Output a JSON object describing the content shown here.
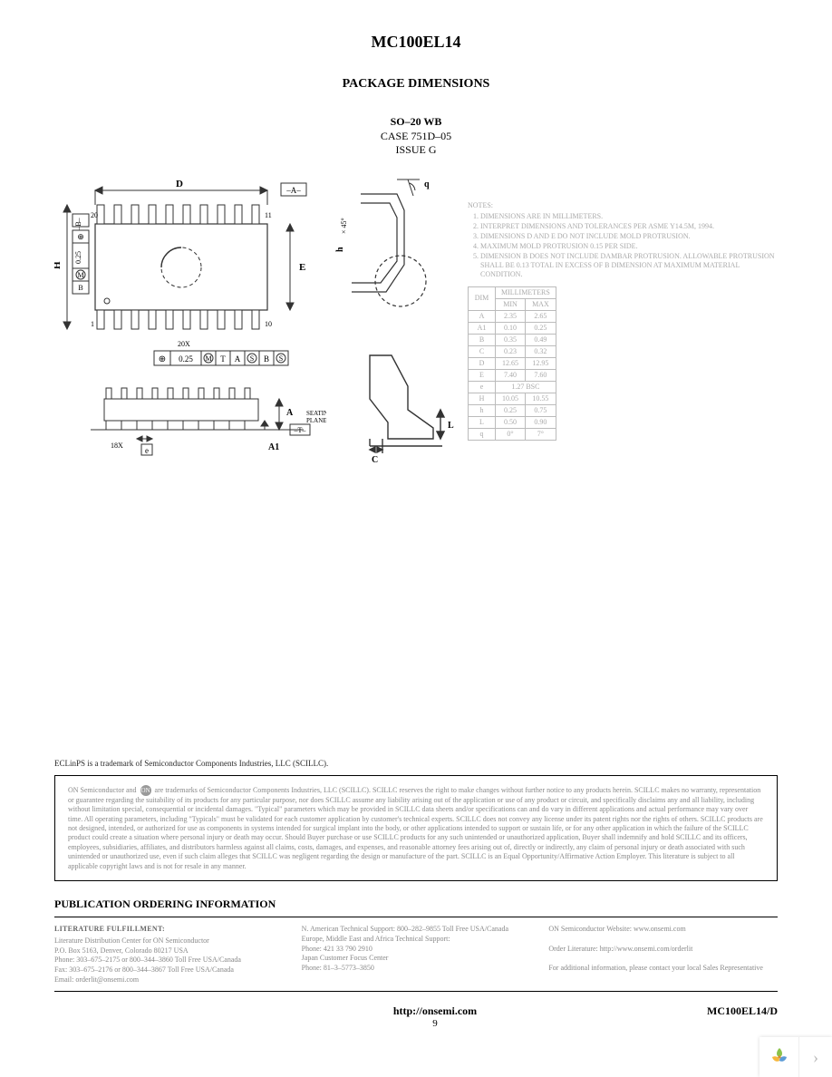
{
  "header": {
    "part_number": "MC100EL14",
    "section_title": "PACKAGE DIMENSIONS",
    "package_name": "SO–20 WB",
    "case_line": "CASE 751D–05",
    "issue_line": "ISSUE G"
  },
  "diagram_labels": {
    "top": {
      "D": "D",
      "A_datum": "–A–"
    },
    "pins": {
      "p20": "20",
      "p11": "11",
      "p1": "1",
      "p10": "10"
    },
    "left": {
      "H": "H",
      "B_datum": "–B–",
      "gdt_0_25": "0.25",
      "gdt_M": "M",
      "gdt_B": "B"
    },
    "right": {
      "E": "E"
    },
    "bot_gdt": {
      "oplus": "⊕",
      "val": "0.25",
      "M": "M",
      "T": "T",
      "A": "A",
      "B": "B"
    },
    "side": {
      "A": "A",
      "A1": "A1",
      "T_datum": "–T–",
      "seating": "SEATING",
      "plane": "PLANE",
      "x18": "18X",
      "e": "e"
    },
    "detail": {
      "q": "q",
      "h": "h",
      "x45": "× 45°",
      "C": "C",
      "L": "L"
    },
    "x20": "20X"
  },
  "notes": {
    "heading": "NOTES:",
    "items": [
      "DIMENSIONS ARE IN MILLIMETERS.",
      "INTERPRET DIMENSIONS AND TOLERANCES PER ASME Y14.5M, 1994.",
      "DIMENSIONS D AND E DO NOT INCLUDE MOLD PROTRUSION.",
      "MAXIMUM MOLD PROTRUSION 0.15 PER SIDE.",
      "DIMENSION B DOES NOT INCLUDE DAMBAR PROTRUSION. ALLOWABLE PROTRUSION SHALL BE 0.13 TOTAL IN EXCESS OF B DIMENSION AT MAXIMUM MATERIAL CONDITION."
    ]
  },
  "dim_table": {
    "unit_header": "MILLIMETERS",
    "col_dim": "DIM",
    "col_min": "MIN",
    "col_max": "MAX",
    "rows": [
      {
        "dim": "A",
        "min": "2.35",
        "max": "2.65"
      },
      {
        "dim": "A1",
        "min": "0.10",
        "max": "0.25"
      },
      {
        "dim": "B",
        "min": "0.35",
        "max": "0.49"
      },
      {
        "dim": "C",
        "min": "0.23",
        "max": "0.32"
      },
      {
        "dim": "D",
        "min": "12.65",
        "max": "12.95"
      },
      {
        "dim": "E",
        "min": "7.40",
        "max": "7.60"
      },
      {
        "dim": "e",
        "min": "1.27 BSC",
        "max": ""
      },
      {
        "dim": "H",
        "min": "10.05",
        "max": "10.55"
      },
      {
        "dim": "h",
        "min": "0.25",
        "max": "0.75"
      },
      {
        "dim": "L",
        "min": "0.50",
        "max": "0.90"
      },
      {
        "dim": "q",
        "min": "0°",
        "max": "7°"
      }
    ]
  },
  "trademark_line": "ECLinPS is a trademark of Semiconductor Components Industries, LLC (SCILLC).",
  "disclaimer": {
    "prefix": "ON Semiconductor and",
    "badge": "ON",
    "body": "are trademarks of Semiconductor Components Industries, LLC (SCILLC). SCILLC reserves the right to make changes without further notice to any products herein. SCILLC makes no warranty, representation or guarantee regarding the suitability of its products for any particular purpose, nor does SCILLC assume any liability arising out of the application or use of any product or circuit, and specifically disclaims any and all liability, including without limitation special, consequential or incidental damages. \"Typical\" parameters which may be provided in SCILLC data sheets and/or specifications can and do vary in different applications and actual performance may vary over time. All operating parameters, including \"Typicals\" must be validated for each customer application by customer's technical experts. SCILLC does not convey any license under its patent rights nor the rights of others. SCILLC products are not designed, intended, or authorized for use as components in systems intended for surgical implant into the body, or other applications intended to support or sustain life, or for any other application in which the failure of the SCILLC product could create a situation where personal injury or death may occur. Should Buyer purchase or use SCILLC products for any such unintended or unauthorized application, Buyer shall indemnify and hold SCILLC and its officers, employees, subsidiaries, affiliates, and distributors harmless against all claims, costs, damages, and expenses, and reasonable attorney fees arising out of, directly or indirectly, any claim of personal injury or death associated with such unintended or unauthorized use, even if such claim alleges that SCILLC was negligent regarding the design or manufacture of the part. SCILLC is an Equal Opportunity/Affirmative Action Employer. This literature is subject to all applicable copyright laws and is not for resale in any manner."
  },
  "pub": {
    "title": "PUBLICATION ORDERING INFORMATION",
    "col1_head": "LITERATURE FULFILLMENT:",
    "col1_lines": [
      "Literature Distribution Center for ON Semiconductor",
      "P.O. Box 5163, Denver, Colorado 80217 USA",
      "Phone: 303–675–2175 or 800–344–3860 Toll Free USA/Canada",
      "Fax: 303–675–2176 or 800–344–3867 Toll Free USA/Canada",
      "Email: orderlit@onsemi.com"
    ],
    "col2_lines": [
      "N. American Technical Support: 800–282–9855 Toll Free USA/Canada",
      "Europe, Middle East and Africa Technical Support:",
      "Phone: 421 33 790 2910",
      "Japan Customer Focus Center",
      "Phone: 81–3–5773–3850"
    ],
    "col3_lines": [
      "ON Semiconductor Website: www.onsemi.com",
      "",
      "Order Literature: http://www.onsemi.com/orderlit",
      "",
      "For additional information, please contact your local Sales Representative"
    ]
  },
  "footer": {
    "url": "http://onsemi.com",
    "page": "9",
    "doc": "MC100EL14/D"
  },
  "colors": {
    "text": "#000000",
    "faded": "#a0a0a0",
    "border": "#000000"
  }
}
